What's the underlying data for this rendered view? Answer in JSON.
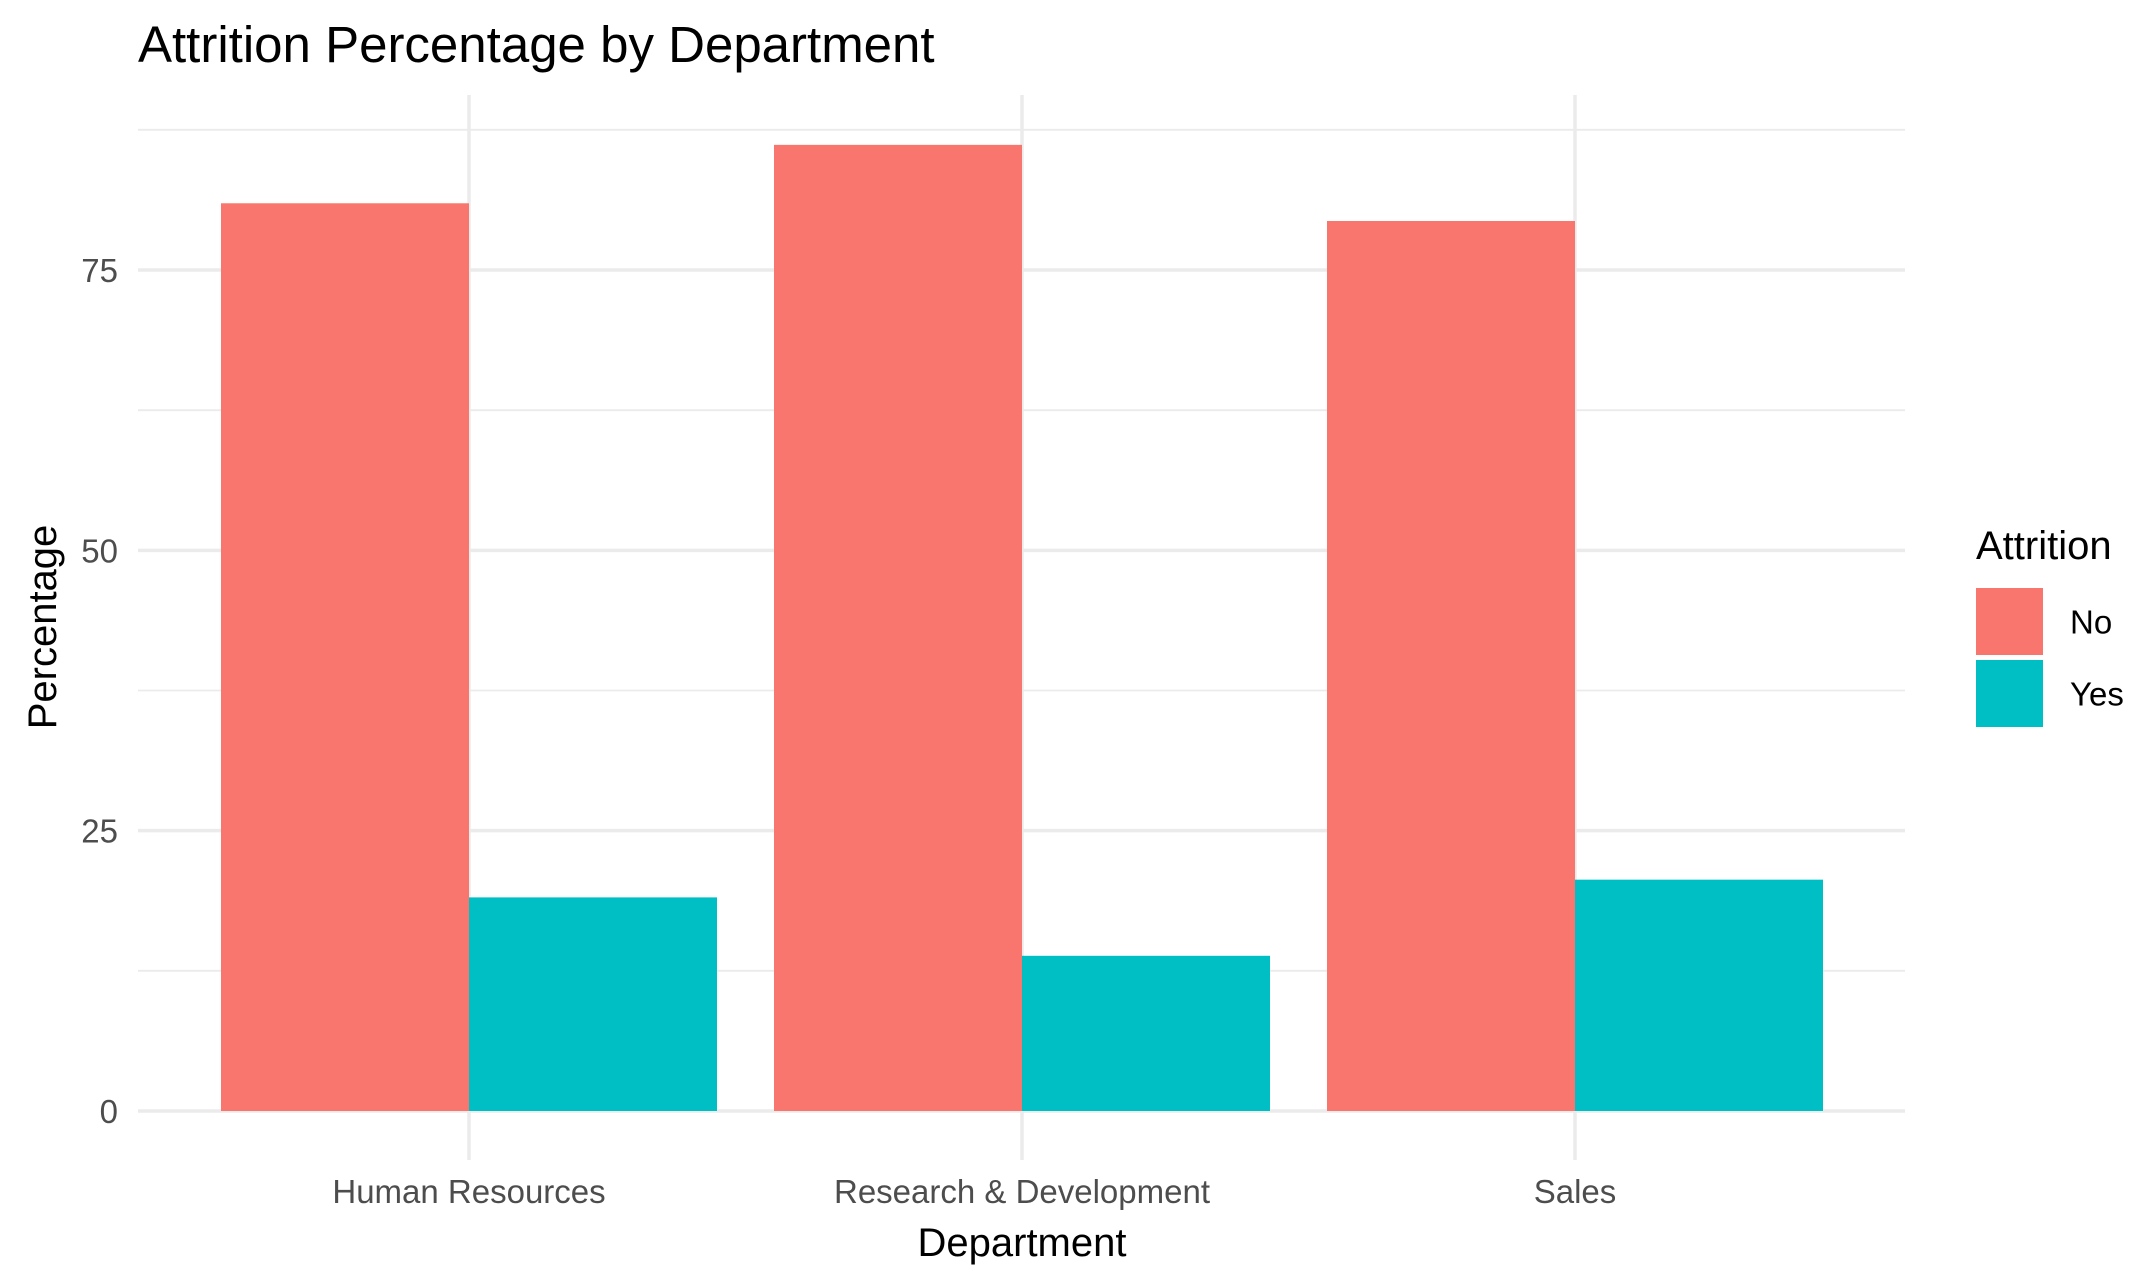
{
  "chart_data": {
    "type": "bar",
    "title": "Attrition Percentage by Department",
    "xlabel": "Department",
    "ylabel": "Percentage",
    "categories": [
      "Human Resources",
      "Research & Development",
      "Sales"
    ],
    "series": [
      {
        "name": "No",
        "color": "#F8766D",
        "values": [
          80.95,
          86.16,
          79.37
        ]
      },
      {
        "name": "Yes",
        "color": "#00BFC4",
        "values": [
          19.05,
          13.84,
          20.63
        ]
      }
    ],
    "ylim": [
      0,
      88
    ],
    "yticks": [
      0,
      25,
      50,
      75
    ],
    "grid": true,
    "legend": {
      "title": "Attrition",
      "placement": "right"
    }
  }
}
